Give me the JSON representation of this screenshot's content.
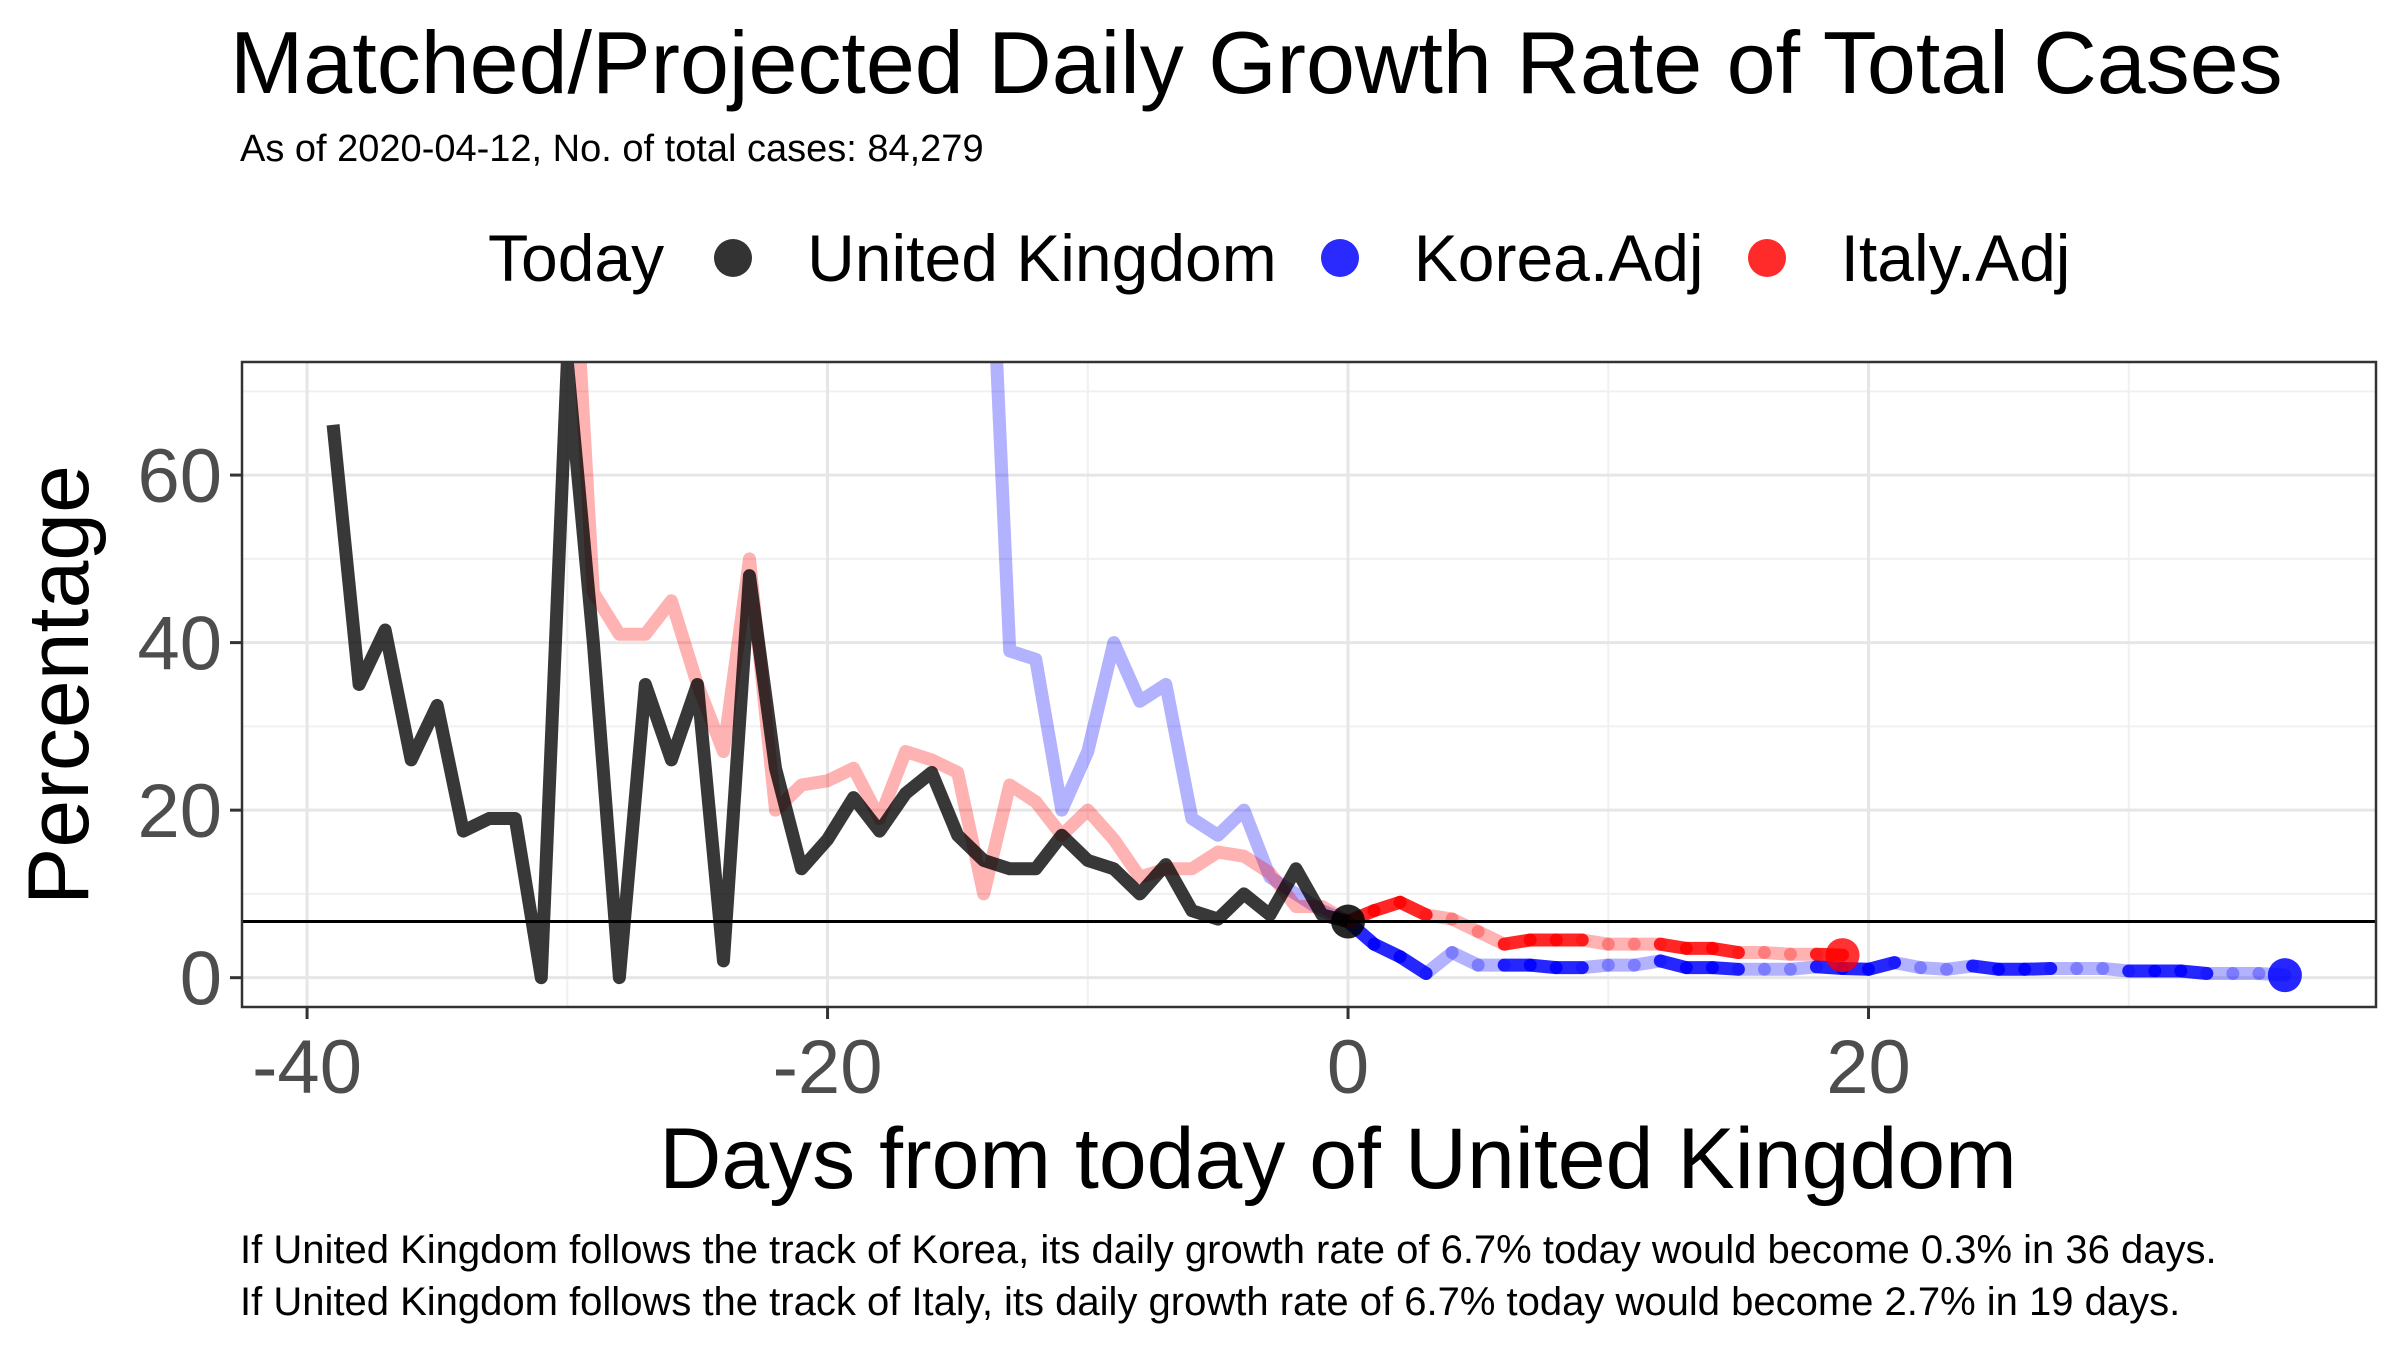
{
  "title": "Matched/Projected Daily Growth Rate of Total Cases",
  "subtitle": "As of 2020-04-12, No. of total cases: 84,279",
  "legend": {
    "title": "Today",
    "items": [
      {
        "label": "United Kingdom",
        "color": "#000000"
      },
      {
        "label": "Korea.Adj",
        "color": "#0000ff"
      },
      {
        "label": "Italy.Adj",
        "color": "#ff0000"
      }
    ]
  },
  "footnotes": [
    "If United Kingdom follows the track of Korea, its daily growth rate of 6.7% today would become 0.3% in 36 days.",
    "If United Kingdom follows the track of Italy, its daily growth rate of 6.7% today would become 2.7% in 19 days."
  ],
  "chart_data": {
    "type": "line",
    "xlabel": "Days from today of United Kingdom",
    "ylabel": "Percentage",
    "xlim": [
      -42.5,
      39.5
    ],
    "ylim": [
      -3.5,
      73.5
    ],
    "x_ticks": [
      -40,
      -20,
      0,
      20
    ],
    "y_ticks": [
      0,
      20,
      40,
      60
    ],
    "grid": true,
    "legend_position": "top",
    "hline": 6.7,
    "series": [
      {
        "name": "United Kingdom",
        "color": "#000000",
        "x": [
          -39,
          -38,
          -37,
          -36,
          -35,
          -34,
          -33,
          -32,
          -31,
          -30,
          -29,
          -28,
          -27,
          -26,
          -25,
          -24,
          -23,
          -22,
          -21,
          -20,
          -19,
          -18,
          -17,
          -16,
          -15,
          -14,
          -13,
          -12,
          -11,
          -10,
          -9,
          -8,
          -7,
          -6,
          -5,
          -4,
          -3,
          -2,
          -1,
          0
        ],
        "y": [
          66,
          35,
          41.5,
          26,
          32.5,
          17.5,
          19,
          19,
          0,
          73.5,
          40,
          0,
          35,
          26,
          35,
          2,
          48,
          25,
          13,
          16.5,
          21.5,
          17.5,
          22,
          24.5,
          17,
          14,
          13,
          13,
          17,
          14,
          13,
          10,
          13.5,
          8,
          7,
          10,
          7.5,
          13,
          7.5,
          6.7
        ],
        "today": {
          "x": 0,
          "y": 6.7
        }
      },
      {
        "name": "Korea.Adj",
        "color": "#0000ff",
        "x": [
          -13.5,
          -13,
          -12,
          -11,
          -10,
          -9,
          -8,
          -7,
          -6,
          -5,
          -4,
          -3,
          -2,
          -1,
          0,
          1,
          2,
          3,
          4,
          5,
          6,
          7,
          8,
          9,
          10,
          11,
          12,
          13,
          14,
          15,
          16,
          17,
          18,
          19,
          20,
          21,
          22,
          23,
          24,
          25,
          26,
          27,
          28,
          29,
          30,
          31,
          32,
          33,
          34,
          35,
          36
        ],
        "y": [
          73.5,
          39,
          38,
          20,
          27,
          40,
          33,
          35,
          19,
          17,
          20,
          12,
          10,
          8,
          6.7,
          4,
          2.5,
          0.5,
          3,
          1.5,
          1.5,
          1.5,
          1.2,
          1.2,
          1.5,
          1.5,
          2,
          1.2,
          1.2,
          1,
          1,
          1,
          1.3,
          1.1,
          1,
          1.8,
          1.2,
          1,
          1.4,
          1,
          1,
          1.1,
          1.1,
          1.1,
          0.8,
          0.8,
          0.8,
          0.5,
          0.5,
          0.5,
          0.3
        ],
        "end": {
          "x": 36,
          "y": 0.3
        }
      },
      {
        "name": "Italy.Adj",
        "color": "#ff0000",
        "x": [
          -29.5,
          -29,
          -28,
          -27,
          -26,
          -25,
          -24,
          -23,
          -22,
          -21,
          -20,
          -19,
          -18,
          -17,
          -16,
          -15,
          -14,
          -13,
          -12,
          -11,
          -10,
          -9,
          -8,
          -7,
          -6,
          -5,
          -4,
          -3,
          -2,
          -1,
          0,
          1,
          2,
          3,
          4,
          5,
          6,
          7,
          8,
          9,
          10,
          11,
          12,
          13,
          14,
          15,
          16,
          17,
          18,
          19
        ],
        "y": [
          73.5,
          46,
          41,
          41,
          45,
          35,
          27,
          50,
          20,
          23,
          23.5,
          25,
          19,
          27,
          26,
          24.5,
          10,
          23,
          21,
          17,
          20,
          16.5,
          12,
          13,
          13,
          15,
          14.5,
          12.5,
          8.5,
          8.5,
          6.7,
          8,
          9,
          7.5,
          7,
          5.5,
          4,
          4.5,
          4.5,
          4.5,
          4,
          4,
          4,
          3.5,
          3.5,
          3,
          3,
          2.8,
          2.8,
          2.7
        ],
        "end": {
          "x": 19,
          "y": 2.7
        }
      }
    ]
  }
}
